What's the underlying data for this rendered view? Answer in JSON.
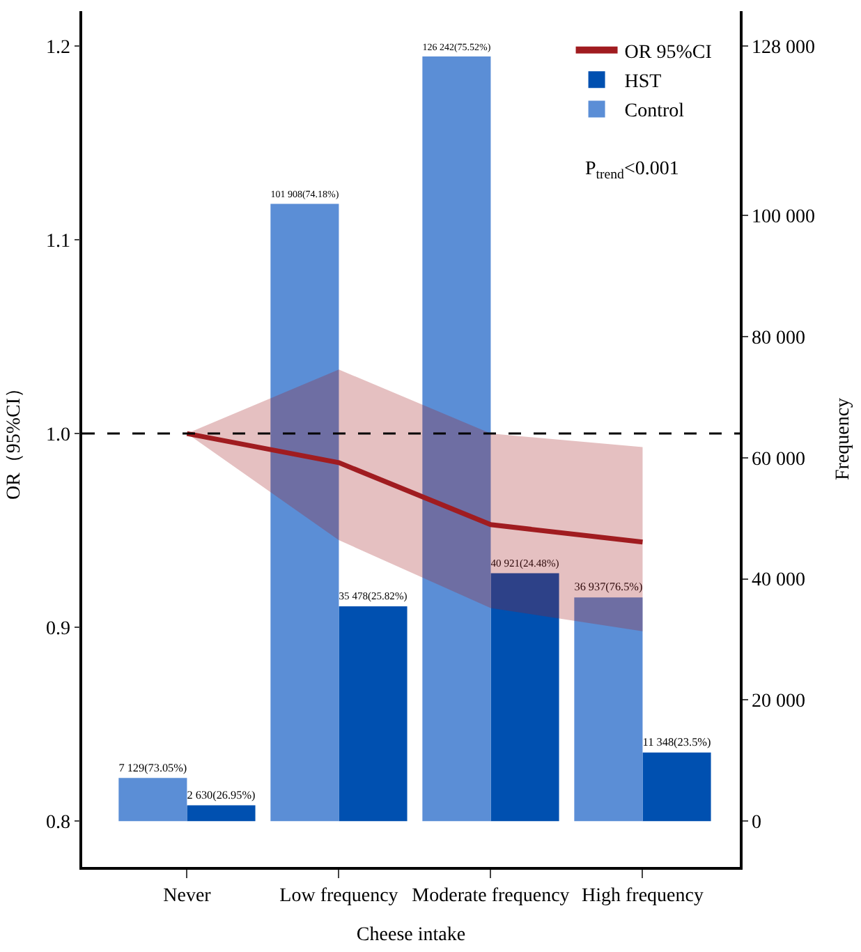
{
  "chart_data": {
    "type": "bar",
    "xlabel": "Cheese intake",
    "ylabel": "OR（95%CI）",
    "y2label": "Frequency",
    "categories": [
      "Never",
      "Low frequency",
      "Moderate frequency",
      "High frequency"
    ],
    "series": [
      {
        "name": "OR 95%CI",
        "type": "line",
        "color": "#a01c20",
        "values": [
          1.0,
          0.985,
          0.953,
          0.944
        ],
        "lower": [
          1.0,
          0.945,
          0.91,
          0.898
        ],
        "upper": [
          1.0,
          1.033,
          1.0,
          0.993
        ]
      },
      {
        "name": "HST",
        "axis": "y2",
        "color": "#0050b0",
        "values": [
          2630,
          35478,
          40921,
          11348
        ],
        "value_labels": [
          "2 630(26.95%)",
          "35 478(25.82%)",
          "40 921(24.48%)",
          "11 348(23.5%)"
        ]
      },
      {
        "name": "Control",
        "axis": "y2",
        "color": "#5b8ed6",
        "values": [
          7129,
          101908,
          126242,
          36937
        ],
        "value_labels": [
          "7 129(73.05%)",
          "101 908(74.18%)",
          "126 242(75.52%)",
          "36 937(76.5%)"
        ]
      }
    ],
    "ylim": [
      0.7764,
      1.2179
    ],
    "yticks": [
      0.8,
      0.9,
      {
        "value": 1.0,
        "label": "1.0"
      },
      1.1,
      1.2
    ],
    "y2lim": [
      -7557,
      133720
    ],
    "y2ticks": [
      0,
      {
        "value": 20000,
        "label": "20 000"
      },
      {
        "value": 40000,
        "label": "40 000"
      },
      {
        "value": 60000,
        "label": "60 000"
      },
      {
        "value": 80000,
        "label": "80 000"
      },
      {
        "value": 100000,
        "label": "100 000"
      },
      {
        "value": 128000,
        "label": "128 000"
      }
    ],
    "ref_lines": [
      {
        "axis": "y",
        "value": 1.0,
        "label": null,
        "color": "#000000",
        "line_style": "dashed"
      }
    ],
    "annotations": [
      "P$_{trend}$<0.001"
    ],
    "legend": "top right"
  }
}
